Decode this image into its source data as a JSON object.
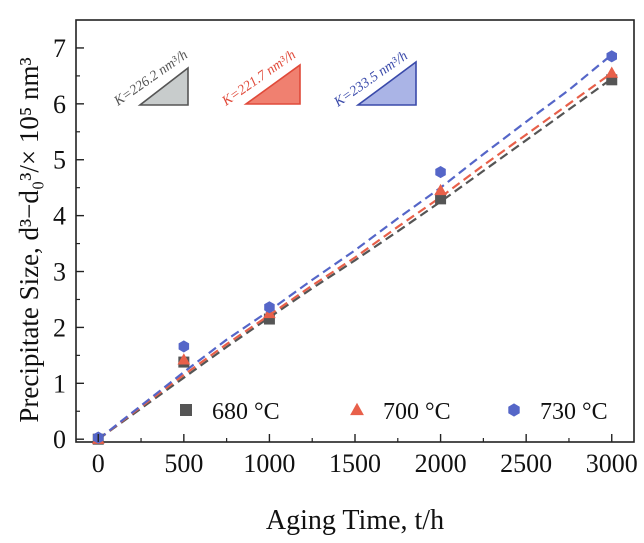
{
  "chart_data": {
    "type": "scatter",
    "xlabel": "Aging Time, t/h",
    "ylabel": "Precipitate Size, d³−d₀³/× 10⁵ nm³",
    "xlim": [
      -130,
      3130
    ],
    "ylim": [
      -0.05,
      7.5
    ],
    "x_ticks": [
      0,
      500,
      1000,
      1500,
      2000,
      2500,
      3000
    ],
    "y_ticks": [
      0,
      1,
      2,
      3,
      4,
      5,
      6,
      7
    ],
    "grid": false,
    "legend_position": "bottom",
    "series": [
      {
        "name": "680 °C",
        "marker": "square",
        "color": "#555555",
        "x": [
          0,
          500,
          1000,
          2000,
          3000
        ],
        "y": [
          0.0,
          1.38,
          2.15,
          4.3,
          6.43
        ],
        "fit_x": [
          0,
          250,
          500,
          750,
          1000,
          1250,
          1500,
          1750,
          2000,
          2250,
          2500,
          2750,
          3000
        ],
        "fit_y": [
          0.0,
          0.55,
          1.1,
          1.65,
          2.18,
          2.7,
          3.2,
          3.72,
          4.25,
          4.8,
          5.35,
          5.9,
          6.45
        ]
      },
      {
        "name": "700 °C",
        "marker": "triangle",
        "color": "#e8604a",
        "x": [
          0,
          500,
          1000,
          2000,
          3000
        ],
        "y": [
          0.0,
          1.42,
          2.25,
          4.45,
          6.55
        ],
        "fit_x": [
          0,
          250,
          500,
          750,
          1000,
          1250,
          1500,
          1750,
          2000,
          2250,
          2500,
          2750,
          3000
        ],
        "fit_y": [
          0.0,
          0.58,
          1.15,
          1.7,
          2.22,
          2.75,
          3.25,
          3.8,
          4.33,
          4.9,
          5.45,
          6.0,
          6.55
        ]
      },
      {
        "name": "730 °C",
        "marker": "hexagon",
        "color": "#5566c8",
        "x": [
          0,
          500,
          1000,
          2000,
          3000
        ],
        "y": [
          0.03,
          1.66,
          2.36,
          4.78,
          6.85
        ],
        "fit_x": [
          0,
          250,
          500,
          750,
          1000,
          1250,
          1500,
          1750,
          2000,
          2250,
          2500,
          2750,
          3000
        ],
        "fit_y": [
          0.0,
          0.6,
          1.2,
          1.78,
          2.3,
          2.85,
          3.38,
          3.95,
          4.5,
          5.1,
          5.68,
          6.25,
          6.88
        ]
      }
    ],
    "rate_annotations": [
      {
        "label": "K=226.2 nm³/h",
        "color": "#555555",
        "fill": "#c8cccc"
      },
      {
        "label": "K=221.7 nm³/h",
        "color": "#e04a3a",
        "fill": "#f08070"
      },
      {
        "label": "K=233.5 nm³/h",
        "color": "#3a4aaa",
        "fill": "#aab4e6"
      }
    ]
  }
}
